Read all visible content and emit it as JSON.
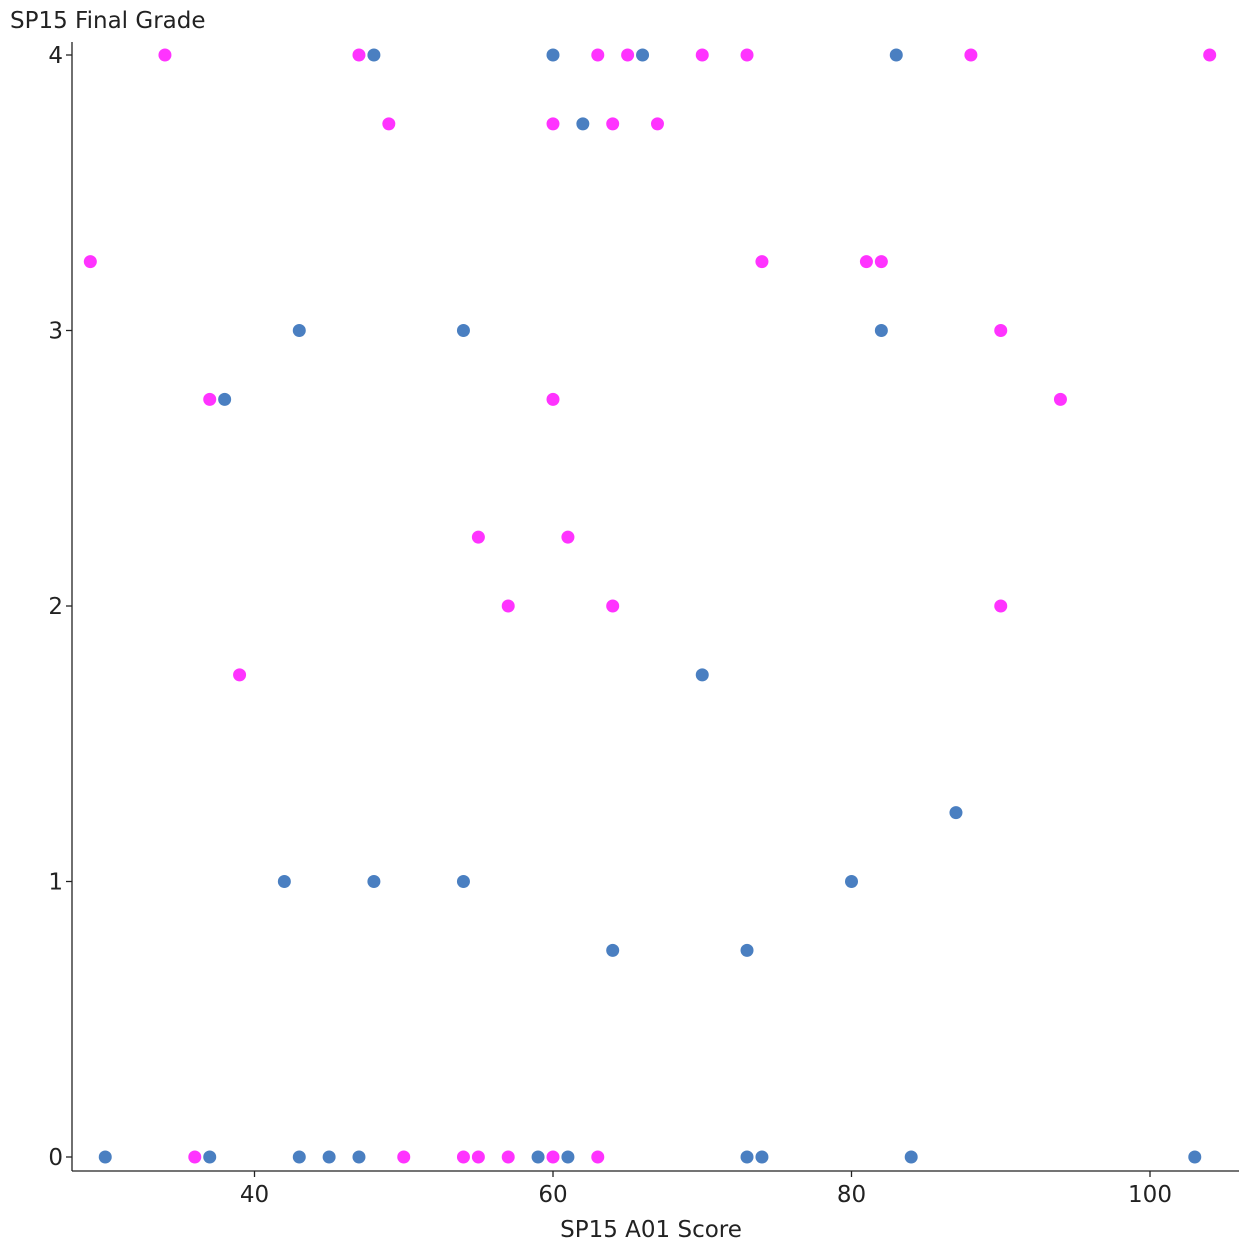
{
  "chart_data": {
    "type": "scatter",
    "title": "",
    "xlabel": "SP15 A01 Score",
    "ylabel": "SP15 Final Grade",
    "xlim": [
      28,
      106
    ],
    "ylim": [
      -0.05,
      4.05
    ],
    "x_ticks": [
      40,
      60,
      80,
      100
    ],
    "y_ticks": [
      0,
      1,
      2,
      3,
      4
    ],
    "grid": false,
    "legend": "none",
    "series": [
      {
        "color": "#4a7fc1",
        "points": [
          [
            48,
            4
          ],
          [
            60,
            4
          ],
          [
            66,
            4
          ],
          [
            83,
            4
          ],
          [
            62,
            3.75
          ],
          [
            43,
            3
          ],
          [
            54,
            3
          ],
          [
            82,
            3
          ],
          [
            38,
            2.75
          ],
          [
            70,
            1.75
          ],
          [
            87,
            1.25
          ],
          [
            42,
            1
          ],
          [
            48,
            1
          ],
          [
            54,
            1
          ],
          [
            80,
            1
          ],
          [
            64,
            0.75
          ],
          [
            73,
            0.75
          ],
          [
            30,
            0
          ],
          [
            37,
            0
          ],
          [
            43,
            0
          ],
          [
            45,
            0
          ],
          [
            47,
            0
          ],
          [
            59,
            0
          ],
          [
            61,
            0
          ],
          [
            73,
            0
          ],
          [
            74,
            0
          ],
          [
            84,
            0
          ],
          [
            103,
            0
          ]
        ]
      },
      {
        "color": "#ff33ff",
        "points": [
          [
            34,
            4
          ],
          [
            47,
            4
          ],
          [
            63,
            4
          ],
          [
            65,
            4
          ],
          [
            70,
            4
          ],
          [
            73,
            4
          ],
          [
            88,
            4
          ],
          [
            104,
            4
          ],
          [
            49,
            3.75
          ],
          [
            60,
            3.75
          ],
          [
            64,
            3.75
          ],
          [
            67,
            3.75
          ],
          [
            29,
            3.25
          ],
          [
            74,
            3.25
          ],
          [
            81,
            3.25
          ],
          [
            82,
            3.25
          ],
          [
            90,
            3
          ],
          [
            37,
            2.75
          ],
          [
            60,
            2.75
          ],
          [
            94,
            2.75
          ],
          [
            55,
            2.25
          ],
          [
            61,
            2.25
          ],
          [
            57,
            2
          ],
          [
            64,
            2
          ],
          [
            90,
            2
          ],
          [
            39,
            1.75
          ],
          [
            36,
            0
          ],
          [
            50,
            0
          ],
          [
            54,
            0
          ],
          [
            55,
            0
          ],
          [
            57,
            0
          ],
          [
            60,
            0
          ],
          [
            63,
            0
          ]
        ]
      }
    ]
  }
}
